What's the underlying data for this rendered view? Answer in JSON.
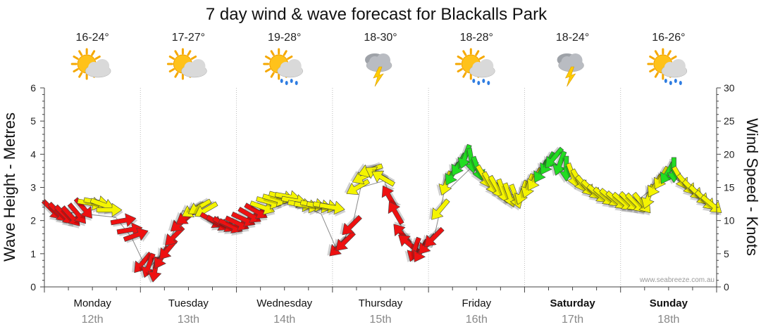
{
  "chart_data": {
    "type": "line",
    "title": "7 day wind & wave forecast for Blackalls Park",
    "ylabel_left": "Wave Height - Metres",
    "ylabel_right": "Wind Speed - Knots",
    "ylim_left": [
      0,
      6
    ],
    "ylim_right": [
      0,
      30
    ],
    "yticks_left": [
      "0",
      "1",
      "2",
      "3",
      "4",
      "5",
      "6"
    ],
    "yticks_right": [
      "0",
      "5",
      "10",
      "15",
      "20",
      "25",
      "30"
    ],
    "watermark": "www.seabreeze.com.au",
    "days": [
      {
        "name": "Monday",
        "date": "12th",
        "temp": "16-24°",
        "icon": "sun-cloud-icon",
        "bold": false
      },
      {
        "name": "Tuesday",
        "date": "13th",
        "temp": "17-27°",
        "icon": "sun-cloud-icon",
        "bold": false
      },
      {
        "name": "Wednesday",
        "date": "14th",
        "temp": "19-28°",
        "icon": "sun-cloud-rain-icon",
        "bold": false
      },
      {
        "name": "Thursday",
        "date": "15th",
        "temp": "18-30°",
        "icon": "storm-cloud-icon",
        "bold": false
      },
      {
        "name": "Friday",
        "date": "16th",
        "temp": "18-28°",
        "icon": "sun-cloud-rain-icon",
        "bold": false
      },
      {
        "name": "Saturday",
        "date": "17th",
        "temp": "18-24°",
        "icon": "storm-cloud-icon",
        "bold": true
      },
      {
        "name": "Sunday",
        "date": "18th",
        "temp": "16-26°",
        "icon": "sun-cloud-rain-icon",
        "bold": true
      }
    ],
    "wind_series": [
      {
        "t": 0.1,
        "knots": 11.6,
        "dir": 135,
        "color": "red"
      },
      {
        "t": 0.18,
        "knots": 11.2,
        "dir": 135,
        "color": "red"
      },
      {
        "t": 0.26,
        "knots": 10.8,
        "dir": 135,
        "color": "red"
      },
      {
        "t": 0.34,
        "knots": 10.6,
        "dir": 138,
        "color": "red"
      },
      {
        "t": 0.42,
        "knots": 11.0,
        "dir": 140,
        "color": "red"
      },
      {
        "t": 0.5,
        "knots": 11.8,
        "dir": 140,
        "color": "red"
      },
      {
        "t": 0.58,
        "knots": 12.6,
        "dir": 100,
        "color": "yellow"
      },
      {
        "t": 0.66,
        "knots": 12.8,
        "dir": 100,
        "color": "yellow"
      },
      {
        "t": 0.74,
        "knots": 12.4,
        "dir": 110,
        "color": "yellow"
      },
      {
        "t": 0.82,
        "knots": 11.6,
        "dir": 90,
        "color": "yellow"
      },
      {
        "t": 1.0,
        "knots": 10.0,
        "dir": 80,
        "color": "red"
      },
      {
        "t": 1.08,
        "knots": 8.6,
        "dir": 80,
        "color": "red"
      },
      {
        "t": 1.16,
        "knots": 7.8,
        "dir": 70,
        "color": "red"
      },
      {
        "t": 1.24,
        "knots": 3.6,
        "dir": 220,
        "color": "red"
      },
      {
        "t": 1.32,
        "knots": 3.2,
        "dir": 200,
        "color": "red"
      },
      {
        "t": 1.4,
        "knots": 2.6,
        "dir": 190,
        "color": "red"
      },
      {
        "t": 1.48,
        "knots": 4.4,
        "dir": 210,
        "color": "red"
      },
      {
        "t": 1.56,
        "knots": 5.6,
        "dir": 220,
        "color": "red"
      },
      {
        "t": 1.64,
        "knots": 7.6,
        "dir": 225,
        "color": "red"
      },
      {
        "t": 1.72,
        "knots": 9.6,
        "dir": 230,
        "color": "red"
      },
      {
        "t": 1.8,
        "knots": 10.6,
        "dir": 235,
        "color": "red"
      },
      {
        "t": 1.88,
        "knots": 11.6,
        "dir": 240,
        "color": "yellow"
      },
      {
        "t": 1.96,
        "knots": 12.0,
        "dir": 240,
        "color": "yellow"
      },
      {
        "t": 2.04,
        "knots": 11.6,
        "dir": 240,
        "color": "yellow"
      },
      {
        "t": 2.12,
        "knots": 10.0,
        "dir": 120,
        "color": "red"
      },
      {
        "t": 2.2,
        "knots": 9.6,
        "dir": 120,
        "color": "red"
      },
      {
        "t": 2.28,
        "knots": 9.4,
        "dir": 120,
        "color": "red"
      },
      {
        "t": 2.36,
        "knots": 9.2,
        "dir": 115,
        "color": "red"
      },
      {
        "t": 2.44,
        "knots": 9.6,
        "dir": 115,
        "color": "red"
      },
      {
        "t": 2.52,
        "knots": 10.2,
        "dir": 115,
        "color": "red"
      },
      {
        "t": 2.6,
        "knots": 10.8,
        "dir": 120,
        "color": "red"
      },
      {
        "t": 2.68,
        "knots": 11.4,
        "dir": 120,
        "color": "red"
      },
      {
        "t": 2.76,
        "knots": 12.0,
        "dir": 110,
        "color": "yellow"
      },
      {
        "t": 2.84,
        "knots": 12.8,
        "dir": 105,
        "color": "yellow"
      },
      {
        "t": 2.92,
        "knots": 13.2,
        "dir": 105,
        "color": "yellow"
      },
      {
        "t": 3.0,
        "knots": 13.6,
        "dir": 105,
        "color": "yellow"
      },
      {
        "t": 3.08,
        "knots": 13.6,
        "dir": 100,
        "color": "yellow"
      },
      {
        "t": 3.16,
        "knots": 13.0,
        "dir": 100,
        "color": "yellow"
      },
      {
        "t": 3.24,
        "knots": 12.4,
        "dir": 100,
        "color": "yellow"
      },
      {
        "t": 3.32,
        "knots": 12.2,
        "dir": 100,
        "color": "yellow"
      },
      {
        "t": 3.4,
        "knots": 12.4,
        "dir": 100,
        "color": "yellow"
      },
      {
        "t": 3.48,
        "knots": 12.2,
        "dir": 100,
        "color": "yellow"
      },
      {
        "t": 3.56,
        "knots": 12.2,
        "dir": 100,
        "color": "yellow"
      },
      {
        "t": 3.64,
        "knots": 12.0,
        "dir": 100,
        "color": "yellow"
      },
      {
        "t": 3.72,
        "knots": 6.0,
        "dir": 225,
        "color": "red"
      },
      {
        "t": 3.8,
        "knots": 6.8,
        "dir": 225,
        "color": "red"
      },
      {
        "t": 3.88,
        "knots": 9.2,
        "dir": 225,
        "color": "red"
      },
      {
        "t": 3.96,
        "knots": 15.0,
        "dir": 240,
        "color": "yellow"
      },
      {
        "t": 4.04,
        "knots": 16.6,
        "dir": 245,
        "color": "yellow"
      },
      {
        "t": 4.12,
        "knots": 17.6,
        "dir": 250,
        "color": "yellow"
      },
      {
        "t": 4.2,
        "knots": 17.0,
        "dir": 300,
        "color": "yellow"
      },
      {
        "t": 4.28,
        "knots": 16.4,
        "dir": 300,
        "color": "yellow"
      },
      {
        "t": 4.36,
        "knots": 13.6,
        "dir": 330,
        "color": "red"
      },
      {
        "t": 4.44,
        "knots": 11.2,
        "dir": 330,
        "color": "red"
      },
      {
        "t": 4.52,
        "knots": 8.0,
        "dir": 320,
        "color": "red"
      },
      {
        "t": 4.6,
        "knots": 6.6,
        "dir": 310,
        "color": "red"
      },
      {
        "t": 4.68,
        "knots": 5.6,
        "dir": 200,
        "color": "red"
      },
      {
        "t": 4.76,
        "knots": 5.4,
        "dir": 210,
        "color": "red"
      },
      {
        "t": 4.84,
        "knots": 6.4,
        "dir": 220,
        "color": "red"
      },
      {
        "t": 4.92,
        "knots": 7.4,
        "dir": 225,
        "color": "red"
      },
      {
        "t": 5.0,
        "knots": 11.6,
        "dir": 220,
        "color": "yellow"
      },
      {
        "t": 5.08,
        "knots": 15.6,
        "dir": 200,
        "color": "yellow"
      },
      {
        "t": 5.16,
        "knots": 17.0,
        "dir": 210,
        "color": "green"
      },
      {
        "t": 5.24,
        "knots": 18.4,
        "dir": 210,
        "color": "green"
      },
      {
        "t": 5.32,
        "knots": 19.6,
        "dir": 200,
        "color": "green"
      },
      {
        "t": 5.4,
        "knots": 19.0,
        "dir": 170,
        "color": "green"
      },
      {
        "t": 5.48,
        "knots": 17.8,
        "dir": 160,
        "color": "green"
      },
      {
        "t": 5.56,
        "knots": 16.6,
        "dir": 150,
        "color": "yellow"
      },
      {
        "t": 5.64,
        "knots": 15.6,
        "dir": 150,
        "color": "yellow"
      },
      {
        "t": 5.72,
        "knots": 15.0,
        "dir": 150,
        "color": "yellow"
      },
      {
        "t": 5.8,
        "knots": 14.4,
        "dir": 160,
        "color": "yellow"
      },
      {
        "t": 5.88,
        "knots": 13.8,
        "dir": 160,
        "color": "yellow"
      },
      {
        "t": 5.96,
        "knots": 13.6,
        "dir": 160,
        "color": "yellow"
      },
      {
        "t": 6.04,
        "knots": 14.2,
        "dir": 200,
        "color": "yellow"
      },
      {
        "t": 6.12,
        "knots": 15.2,
        "dir": 200,
        "color": "yellow"
      },
      {
        "t": 6.2,
        "knots": 16.2,
        "dir": 210,
        "color": "yellow"
      },
      {
        "t": 6.28,
        "knots": 17.4,
        "dir": 210,
        "color": "green"
      },
      {
        "t": 6.36,
        "knots": 18.6,
        "dir": 210,
        "color": "green"
      },
      {
        "t": 6.44,
        "knots": 19.4,
        "dir": 220,
        "color": "green"
      },
      {
        "t": 6.52,
        "knots": 18.6,
        "dir": 200,
        "color": "green"
      },
      {
        "t": 6.6,
        "knots": 17.8,
        "dir": 180,
        "color": "green"
      },
      {
        "t": 6.68,
        "knots": 16.8,
        "dir": 160,
        "color": "yellow"
      },
      {
        "t": 6.76,
        "knots": 16.0,
        "dir": 150,
        "color": "yellow"
      },
      {
        "t": 6.84,
        "knots": 15.2,
        "dir": 140,
        "color": "yellow"
      },
      {
        "t": 6.92,
        "knots": 14.6,
        "dir": 135,
        "color": "yellow"
      },
      {
        "t": 7.0,
        "knots": 14.0,
        "dir": 130,
        "color": "yellow"
      },
      {
        "t": 7.08,
        "knots": 13.6,
        "dir": 130,
        "color": "yellow"
      },
      {
        "t": 7.16,
        "knots": 13.4,
        "dir": 130,
        "color": "yellow"
      },
      {
        "t": 7.24,
        "knots": 13.0,
        "dir": 130,
        "color": "yellow"
      },
      {
        "t": 7.32,
        "knots": 12.8,
        "dir": 130,
        "color": "yellow"
      },
      {
        "t": 7.4,
        "knots": 12.8,
        "dir": 135,
        "color": "yellow"
      },
      {
        "t": 7.48,
        "knots": 12.6,
        "dir": 135,
        "color": "yellow"
      },
      {
        "t": 7.56,
        "knots": 12.6,
        "dir": 140,
        "color": "yellow"
      },
      {
        "t": 7.64,
        "knots": 13.6,
        "dir": 200,
        "color": "yellow"
      },
      {
        "t": 7.72,
        "knots": 15.2,
        "dir": 210,
        "color": "yellow"
      },
      {
        "t": 7.8,
        "knots": 16.4,
        "dir": 210,
        "color": "yellow"
      },
      {
        "t": 7.88,
        "knots": 17.2,
        "dir": 210,
        "color": "green"
      },
      {
        "t": 7.96,
        "knots": 17.6,
        "dir": 180,
        "color": "green"
      },
      {
        "t": 8.04,
        "knots": 16.4,
        "dir": 150,
        "color": "yellow"
      },
      {
        "t": 8.12,
        "knots": 15.4,
        "dir": 140,
        "color": "yellow"
      },
      {
        "t": 8.2,
        "knots": 14.6,
        "dir": 135,
        "color": "yellow"
      },
      {
        "t": 8.28,
        "knots": 13.8,
        "dir": 135,
        "color": "yellow"
      },
      {
        "t": 8.36,
        "knots": 13.0,
        "dir": 135,
        "color": "yellow"
      },
      {
        "t": 8.44,
        "knots": 12.4,
        "dir": 130,
        "color": "yellow"
      }
    ],
    "wave_series": [
      {
        "t": 0.1,
        "m": 2.3
      },
      {
        "t": 0.9,
        "m": 2.1
      },
      {
        "t": 1.1,
        "m": 1.5
      },
      {
        "t": 1.3,
        "m": 0.5
      },
      {
        "t": 1.55,
        "m": 1.2
      },
      {
        "t": 1.75,
        "m": 2.3
      },
      {
        "t": 2.0,
        "m": 2.1
      },
      {
        "t": 2.4,
        "m": 1.8
      },
      {
        "t": 2.7,
        "m": 2.3
      },
      {
        "t": 3.0,
        "m": 2.7
      },
      {
        "t": 3.5,
        "m": 2.2
      },
      {
        "t": 3.7,
        "m": 1.1
      },
      {
        "t": 3.9,
        "m": 1.9
      },
      {
        "t": 4.0,
        "m": 3.0
      },
      {
        "t": 4.3,
        "m": 3.2
      },
      {
        "t": 4.45,
        "m": 2.2
      },
      {
        "t": 4.6,
        "m": 1.3
      },
      {
        "t": 4.9,
        "m": 1.2
      },
      {
        "t": 5.05,
        "m": 2.8
      },
      {
        "t": 5.4,
        "m": 3.6
      },
      {
        "t": 5.7,
        "m": 3.0
      },
      {
        "t": 6.0,
        "m": 2.7
      },
      {
        "t": 6.4,
        "m": 3.7
      },
      {
        "t": 7.0,
        "m": 2.8
      },
      {
        "t": 7.5,
        "m": 2.6
      },
      {
        "t": 7.9,
        "m": 3.4
      },
      {
        "t": 8.44,
        "m": 2.5
      }
    ]
  },
  "colors": {
    "red": "#ee1111",
    "yellow": "#f4f400",
    "green": "#22dd22",
    "grid": "#bbbbbb",
    "axis": "#444444"
  }
}
